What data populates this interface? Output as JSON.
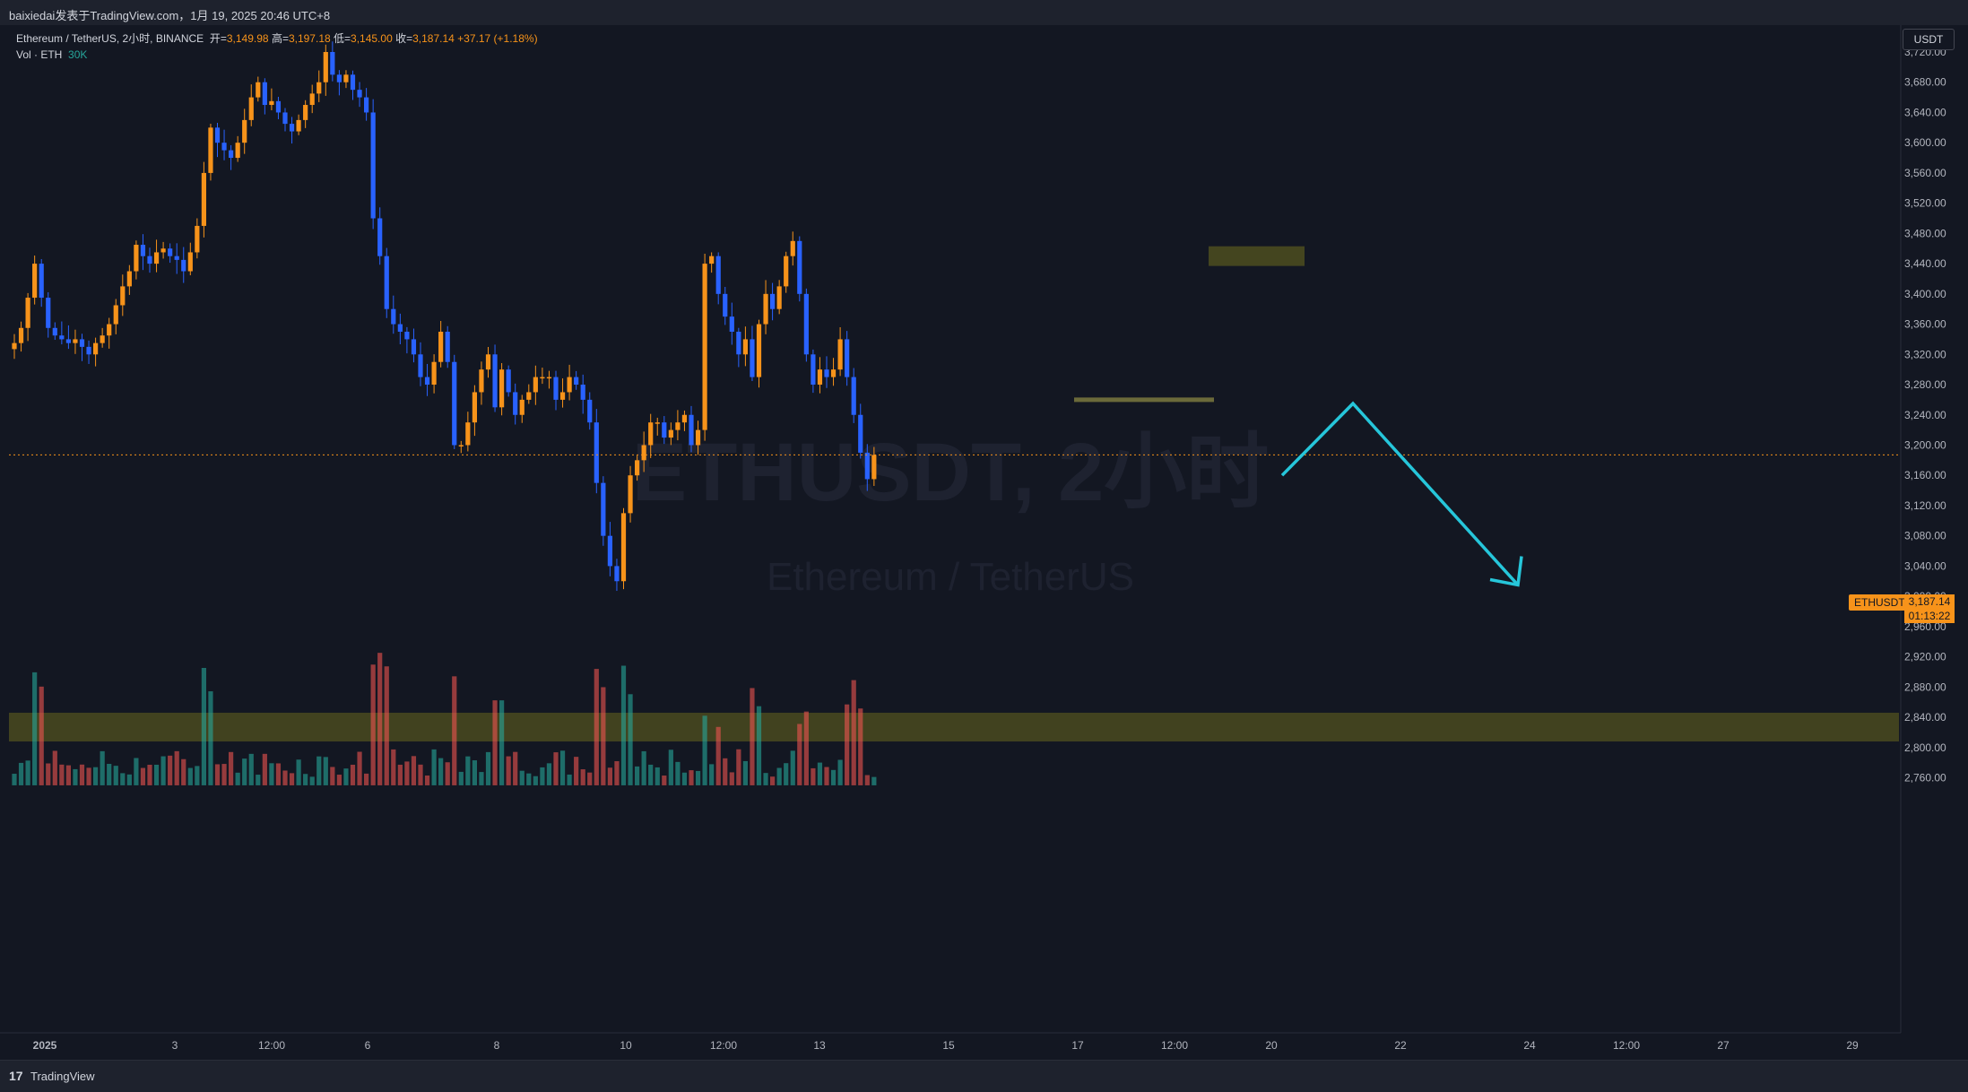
{
  "header": {
    "publish_line": "baixiedai发表于TradingView.com，1月 19, 2025 20:46 UTC+8"
  },
  "legend": {
    "symbol": "Ethereum / TetherUS, 2小时, BINANCE",
    "open_label": "开=",
    "open": "3,149.98",
    "high_label": "高=",
    "high": "3,197.18",
    "low_label": "低=",
    "low": "3,145.00",
    "close_label": "收=",
    "close": "3,187.14",
    "change": "+37.17 (+1.18%)",
    "vol_label": "Vol · ETH",
    "vol_value": "30K"
  },
  "watermark": {
    "line1": "ETHUSDT, 2小时",
    "line2": "Ethereum / TetherUS"
  },
  "currency": "USDT",
  "last_price": {
    "symbol": "ETHUSDT",
    "price": "3,187.14",
    "countdown": "01:13:22"
  },
  "footer": {
    "brand": "TradingView"
  },
  "colors": {
    "up": "#f7931a",
    "down": "#2962ff",
    "vol_up": "#26a69a",
    "vol_down": "#ef5350",
    "zone": "#4a4a1f",
    "arrow": "#26c6da"
  },
  "chart_data": {
    "type": "candlestick",
    "price_axis": {
      "ticks": [
        3720,
        3680,
        3640,
        3600,
        3560,
        3520,
        3480,
        3440,
        3400,
        3360,
        3320,
        3280,
        3240,
        3200,
        3160,
        3120,
        3080,
        3040,
        3000,
        2960,
        2920,
        2880,
        2840,
        2800,
        2760
      ],
      "tick_labels": [
        "3,720.00",
        "3,680.00",
        "3,640.00",
        "3,600.00",
        "3,560.00",
        "3,520.00",
        "3,480.00",
        "3,440.00",
        "3,400.00",
        "3,360.00",
        "3,320.00",
        "3,280.00",
        "3,240.00",
        "3,200.00",
        "3,160.00",
        "3,120.00",
        "3,080.00",
        "3,040.00",
        "3,000.00",
        "2,960.00",
        "2,920.00",
        "2,880.00",
        "2,840.00",
        "2,800.00",
        "2,760.00"
      ],
      "ylim": [
        2745,
        3750
      ]
    },
    "time_axis": {
      "labels": [
        "2025",
        "3",
        "12:00",
        "6",
        "8",
        "10",
        "12:00",
        "13",
        "15",
        "17",
        "12:00",
        "20",
        "22",
        "24",
        "12:00",
        "27",
        "29"
      ]
    },
    "close_path": [
      3335,
      3355,
      3395,
      3440,
      3395,
      3355,
      3345,
      3340,
      3335,
      3340,
      3330,
      3320,
      3335,
      3345,
      3360,
      3385,
      3410,
      3430,
      3465,
      3450,
      3440,
      3455,
      3460,
      3450,
      3445,
      3430,
      3455,
      3490,
      3560,
      3620,
      3600,
      3590,
      3580,
      3600,
      3630,
      3660,
      3680,
      3650,
      3655,
      3640,
      3625,
      3615,
      3630,
      3650,
      3665,
      3680,
      3720,
      3690,
      3680,
      3690,
      3670,
      3660,
      3640,
      3500,
      3450,
      3380,
      3360,
      3350,
      3340,
      3320,
      3290,
      3280,
      3310,
      3350,
      3310,
      3200,
      3200,
      3230,
      3270,
      3300,
      3320,
      3250,
      3300,
      3270,
      3240,
      3260,
      3270,
      3290,
      3290,
      3290,
      3260,
      3270,
      3290,
      3280,
      3260,
      3230,
      3150,
      3080,
      3040,
      3020,
      3110,
      3160,
      3180,
      3200,
      3230,
      3230,
      3210,
      3220,
      3230,
      3240,
      3200,
      3220,
      3440,
      3450,
      3400,
      3370,
      3350,
      3320,
      3340,
      3290,
      3360,
      3400,
      3380,
      3410,
      3450,
      3470,
      3400,
      3320,
      3280,
      3300,
      3290,
      3300,
      3340,
      3290,
      3240,
      3190,
      3155,
      3187
    ],
    "volume_scale_max": 250,
    "zones": [
      {
        "type": "support-band",
        "y_from": 2808,
        "y_to": 2846
      },
      {
        "type": "resistance-box",
        "y_from": 3437,
        "y_to": 3463
      },
      {
        "type": "level-line",
        "y": 3260
      }
    ],
    "projection": [
      3160,
      3255,
      3015
    ]
  }
}
